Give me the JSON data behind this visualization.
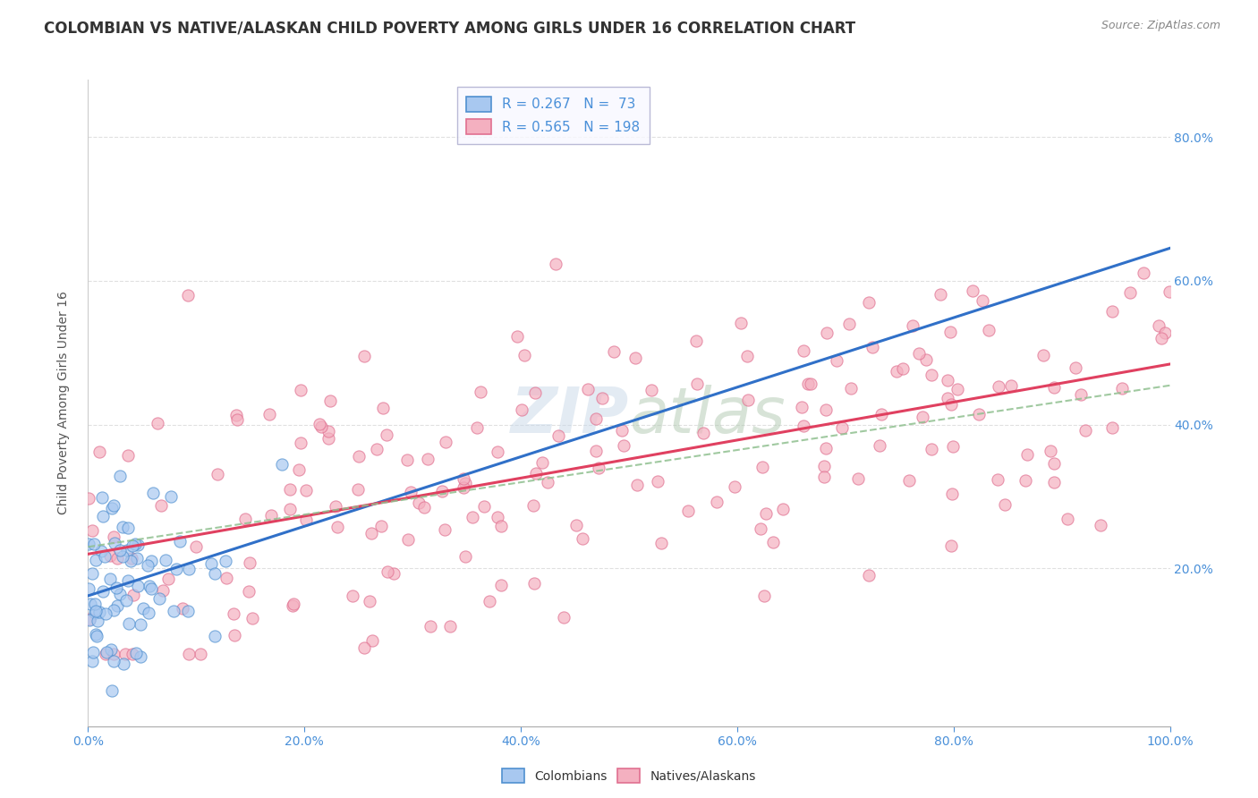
{
  "title": "COLOMBIAN VS NATIVE/ALASKAN CHILD POVERTY AMONG GIRLS UNDER 16 CORRELATION CHART",
  "source": "Source: ZipAtlas.com",
  "ylabel": "Child Poverty Among Girls Under 16",
  "xlim": [
    0.0,
    1.0
  ],
  "ylim": [
    -0.02,
    0.88
  ],
  "xtick_labels": [
    "0.0%",
    "20.0%",
    "40.0%",
    "60.0%",
    "80.0%",
    "100.0%"
  ],
  "xtick_vals": [
    0.0,
    0.2,
    0.4,
    0.6,
    0.8,
    1.0
  ],
  "ytick_labels": [
    "20.0%",
    "40.0%",
    "60.0%",
    "80.0%"
  ],
  "ytick_vals": [
    0.2,
    0.4,
    0.6,
    0.8
  ],
  "colombian_color": "#a8c8f0",
  "native_color": "#f4b0c0",
  "colombian_edge": "#5090d0",
  "native_edge": "#e07090",
  "reg_colombian_color": "#3070c8",
  "reg_native_solid_color": "#e04060",
  "reg_native_dash_color": "#90c090",
  "R_colombian": 0.267,
  "N_colombian": 73,
  "R_native": 0.565,
  "N_native": 198,
  "tick_color": "#4a90d9",
  "grid_color": "#dddddd",
  "title_fontsize": 12,
  "axis_label_fontsize": 10,
  "tick_fontsize": 10,
  "legend_fontsize": 11
}
